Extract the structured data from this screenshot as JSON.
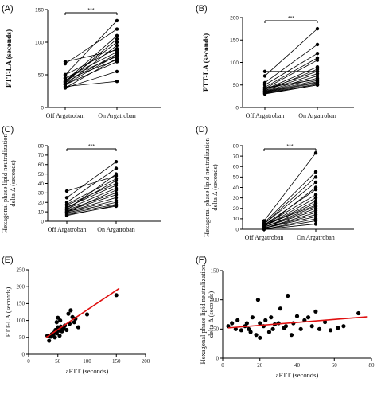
{
  "chart_data": [
    {
      "panel": "(A)",
      "type": "line",
      "subtype": "paired-dot",
      "categories": [
        "Off Argatroban",
        "On Argatroban"
      ],
      "ylabel": "PTT-LA (seconds)",
      "ylim": [
        0,
        150
      ],
      "yticks": [
        0,
        50,
        100,
        150
      ],
      "significance": "***",
      "pairs": [
        [
          70,
          88
        ],
        [
          67,
          120
        ],
        [
          50,
          133
        ],
        [
          50,
          90
        ],
        [
          45,
          85
        ],
        [
          45,
          78
        ],
        [
          40,
          110
        ],
        [
          40,
          100
        ],
        [
          38,
          82
        ],
        [
          35,
          95
        ],
        [
          35,
          70
        ],
        [
          35,
          80
        ],
        [
          32,
          40
        ],
        [
          30,
          55
        ],
        [
          30,
          75
        ],
        [
          42,
          73
        ],
        [
          38,
          105
        ]
      ]
    },
    {
      "panel": "(B)",
      "type": "line",
      "subtype": "paired-dot",
      "categories": [
        "Off Argatroban",
        "On Argatroban"
      ],
      "ylabel": "PTT-LA (seconds)",
      "ylim": [
        0,
        200
      ],
      "yticks": [
        0,
        50,
        100,
        150,
        200
      ],
      "significance": "***",
      "pairs": [
        [
          80,
          80
        ],
        [
          70,
          175
        ],
        [
          55,
          140
        ],
        [
          50,
          120
        ],
        [
          45,
          110
        ],
        [
          42,
          105
        ],
        [
          40,
          90
        ],
        [
          40,
          80
        ],
        [
          38,
          75
        ],
        [
          36,
          70
        ],
        [
          35,
          65
        ],
        [
          35,
          60
        ],
        [
          34,
          57
        ],
        [
          33,
          55
        ],
        [
          32,
          52
        ],
        [
          31,
          50
        ],
        [
          30,
          50
        ],
        [
          37,
          85
        ],
        [
          44,
          62
        ]
      ]
    },
    {
      "panel": "(C)",
      "type": "line",
      "subtype": "paired-dot",
      "categories": [
        "Off Argatroban",
        "On Argatroban"
      ],
      "ylabel": "Hexagonal phase lipid neutralization delta Δ (seconds)",
      "ylim": [
        0,
        80
      ],
      "yticks": [
        0,
        10,
        20,
        30,
        40,
        50,
        60,
        70,
        80
      ],
      "significance": "***",
      "pairs": [
        [
          32,
          48
        ],
        [
          25,
          63
        ],
        [
          20,
          56
        ],
        [
          18,
          45
        ],
        [
          17,
          40
        ],
        [
          15,
          38
        ],
        [
          14,
          43
        ],
        [
          13,
          35
        ],
        [
          12,
          30
        ],
        [
          11,
          28
        ],
        [
          10,
          25
        ],
        [
          10,
          22
        ],
        [
          9,
          20
        ],
        [
          8,
          18
        ],
        [
          7,
          16
        ],
        [
          6,
          17
        ],
        [
          12,
          50
        ],
        [
          10,
          33
        ]
      ]
    },
    {
      "panel": "(D)",
      "type": "line",
      "subtype": "paired-dot",
      "categories": [
        "Off Argatroban",
        "On Argatroban"
      ],
      "ylabel": "Hexagonal phase lipid neutralization delta Δ (seconds)",
      "ylim": [
        0,
        80
      ],
      "yticks": [
        0,
        10,
        20,
        30,
        40,
        50,
        60,
        70,
        80
      ],
      "significance": "***",
      "pairs": [
        [
          8,
          73
        ],
        [
          6,
          55
        ],
        [
          5,
          50
        ],
        [
          5,
          45
        ],
        [
          4,
          38
        ],
        [
          4,
          33
        ],
        [
          3,
          30
        ],
        [
          3,
          27
        ],
        [
          3,
          25
        ],
        [
          2,
          22
        ],
        [
          2,
          20
        ],
        [
          2,
          18
        ],
        [
          1,
          16
        ],
        [
          1,
          14
        ],
        [
          1,
          12
        ],
        [
          0,
          10
        ],
        [
          0,
          8
        ],
        [
          0,
          5
        ],
        [
          2,
          40
        ],
        [
          4,
          23
        ]
      ]
    },
    {
      "panel": "(E)",
      "type": "scatter",
      "xlabel": "aPTT (seconds)",
      "ylabel": "PTT-LA (seconds)",
      "xlim": [
        0,
        200
      ],
      "ylim": [
        0,
        250
      ],
      "xticks": [
        0,
        50,
        100,
        150,
        200
      ],
      "yticks": [
        0,
        50,
        100,
        150,
        200,
        250
      ],
      "points": [
        [
          32,
          55
        ],
        [
          35,
          40
        ],
        [
          38,
          52
        ],
        [
          40,
          60
        ],
        [
          42,
          58
        ],
        [
          44,
          65
        ],
        [
          45,
          50
        ],
        [
          46,
          72
        ],
        [
          48,
          62
        ],
        [
          48,
          95
        ],
        [
          50,
          108
        ],
        [
          50,
          80
        ],
        [
          52,
          70
        ],
        [
          53,
          55
        ],
        [
          54,
          100
        ],
        [
          55,
          82
        ],
        [
          57,
          68
        ],
        [
          58,
          75
        ],
        [
          60,
          78
        ],
        [
          62,
          85
        ],
        [
          65,
          72
        ],
        [
          68,
          120
        ],
        [
          70,
          90
        ],
        [
          72,
          130
        ],
        [
          75,
          110
        ],
        [
          78,
          95
        ],
        [
          80,
          105
        ],
        [
          85,
          80
        ],
        [
          100,
          118
        ],
        [
          150,
          175
        ]
      ],
      "regression": {
        "x": [
          30,
          155
        ],
        "y": [
          50,
          195
        ],
        "color": "#e01010"
      }
    },
    {
      "panel": "(F)",
      "type": "scatter",
      "xlabel": "aPTT (seconds)",
      "ylabel": "Hexagonal phase lipid neutralization delta Δ (seconds)",
      "xlim": [
        0,
        80
      ],
      "ylim": [
        0,
        150
      ],
      "xticks": [
        0,
        20,
        40,
        60,
        80
      ],
      "yticks": [
        0,
        50,
        100,
        150
      ],
      "points": [
        [
          3,
          55
        ],
        [
          5,
          60
        ],
        [
          7,
          50
        ],
        [
          8,
          65
        ],
        [
          10,
          48
        ],
        [
          12,
          55
        ],
        [
          13,
          60
        ],
        [
          14,
          50
        ],
        [
          15,
          45
        ],
        [
          16,
          70
        ],
        [
          18,
          40
        ],
        [
          19,
          100
        ],
        [
          20,
          35
        ],
        [
          20,
          60
        ],
        [
          22,
          55
        ],
        [
          23,
          65
        ],
        [
          25,
          45
        ],
        [
          26,
          70
        ],
        [
          27,
          50
        ],
        [
          28,
          58
        ],
        [
          30,
          60
        ],
        [
          31,
          85
        ],
        [
          33,
          52
        ],
        [
          34,
          55
        ],
        [
          35,
          107
        ],
        [
          37,
          40
        ],
        [
          38,
          60
        ],
        [
          40,
          72
        ],
        [
          42,
          50
        ],
        [
          44,
          65
        ],
        [
          46,
          70
        ],
        [
          48,
          55
        ],
        [
          50,
          80
        ],
        [
          52,
          50
        ],
        [
          55,
          62
        ],
        [
          58,
          48
        ],
        [
          62,
          52
        ],
        [
          65,
          55
        ],
        [
          73,
          77
        ]
      ],
      "regression": {
        "x": [
          3,
          78
        ],
        "y": [
          52,
          71
        ],
        "color": "#e01010"
      }
    }
  ]
}
